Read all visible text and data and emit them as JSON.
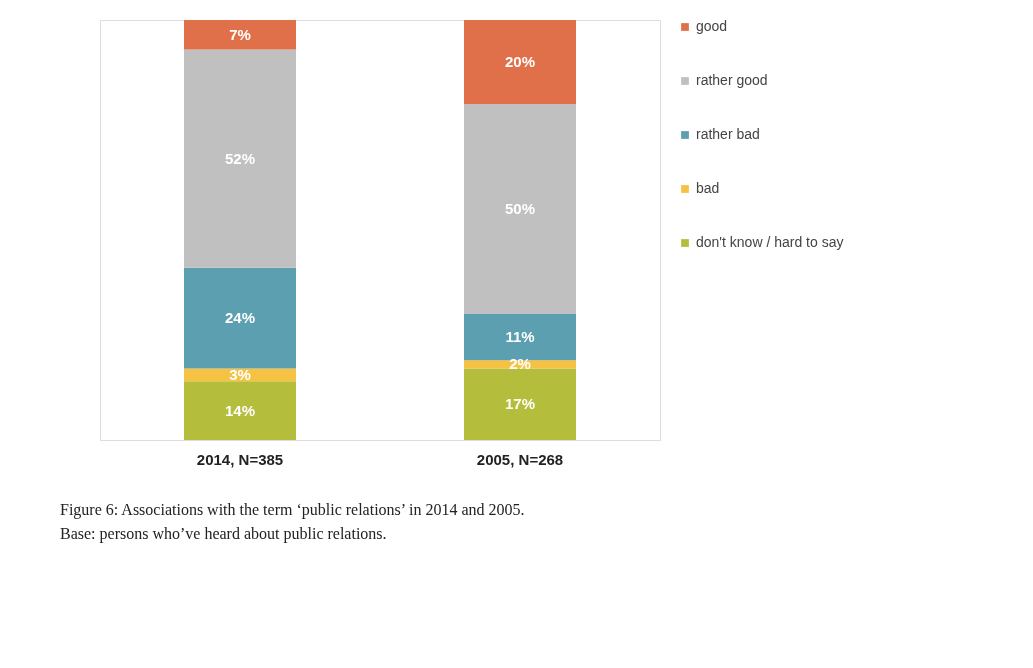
{
  "chart_data": {
    "type": "bar",
    "stacked": true,
    "categories": [
      "2014, N=385",
      "2005, N=268"
    ],
    "series": [
      {
        "name": "don't know / hard to say",
        "color": "#b5bd3c",
        "values": [
          14,
          17
        ],
        "value_labels": [
          "14%",
          "17%"
        ]
      },
      {
        "name": "bad",
        "color": "#f5c244",
        "values": [
          3,
          2
        ],
        "value_labels": [
          "3%",
          "2%"
        ]
      },
      {
        "name": "rather bad",
        "color": "#5b9fb0",
        "values": [
          24,
          11
        ],
        "value_labels": [
          "24%",
          "11%"
        ]
      },
      {
        "name": "rather good",
        "color": "#c0c0c0",
        "values": [
          52,
          50
        ],
        "value_labels": [
          "52%",
          "50%"
        ]
      },
      {
        "name": "good",
        "color": "#e0704a",
        "values": [
          7,
          20
        ],
        "value_labels": [
          "7%",
          "20%"
        ]
      }
    ],
    "legend": "right",
    "tick_labels": "x",
    "annotations": [
      "Figure 6:  Associations with the term ‘public relations’ in 2014 and 2005.",
      "Base: persons who’ve heard about public relations."
    ]
  }
}
